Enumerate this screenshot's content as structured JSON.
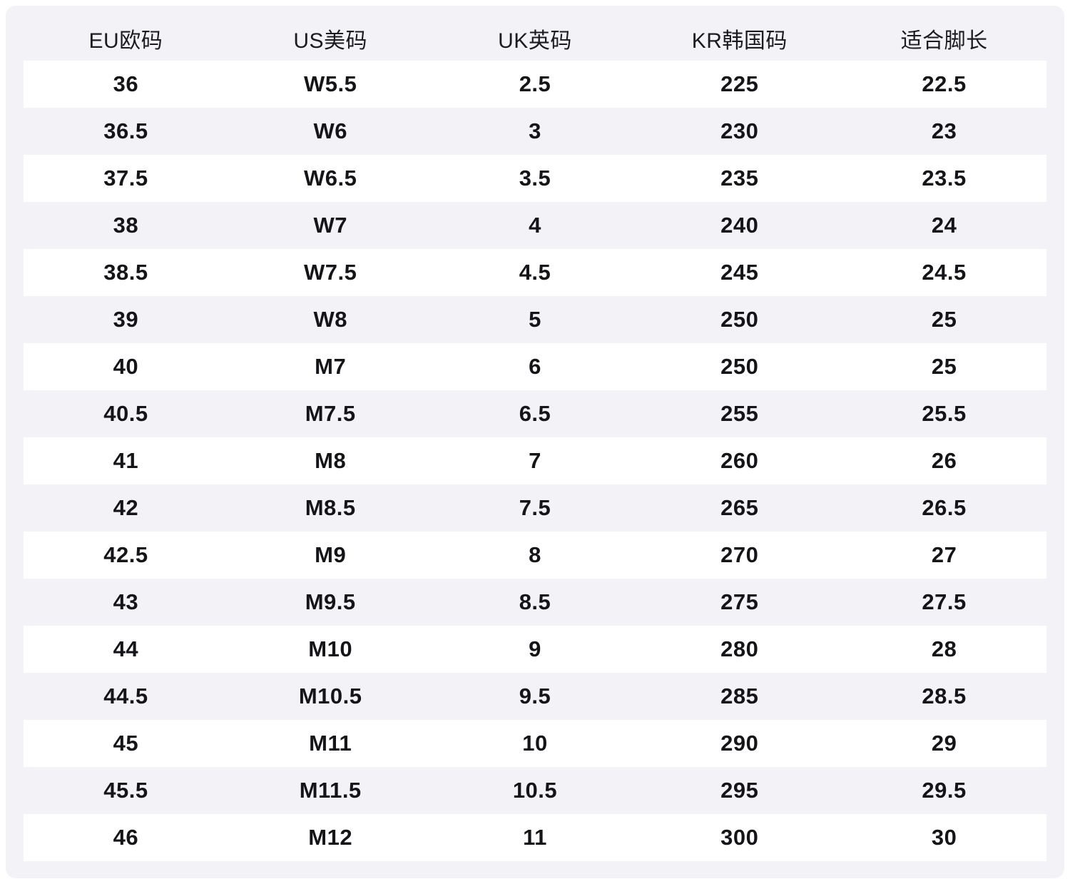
{
  "chart_data": {
    "type": "table",
    "columns": [
      "EU欧码",
      "US美码",
      "UK英码",
      "KR韩国码",
      "适合脚长"
    ],
    "rows": [
      [
        "36",
        "W5.5",
        "2.5",
        "225",
        "22.5"
      ],
      [
        "36.5",
        "W6",
        "3",
        "230",
        "23"
      ],
      [
        "37.5",
        "W6.5",
        "3.5",
        "235",
        "23.5"
      ],
      [
        "38",
        "W7",
        "4",
        "240",
        "24"
      ],
      [
        "38.5",
        "W7.5",
        "4.5",
        "245",
        "24.5"
      ],
      [
        "39",
        "W8",
        "5",
        "250",
        "25"
      ],
      [
        "40",
        "M7",
        "6",
        "250",
        "25"
      ],
      [
        "40.5",
        "M7.5",
        "6.5",
        "255",
        "25.5"
      ],
      [
        "41",
        "M8",
        "7",
        "260",
        "26"
      ],
      [
        "42",
        "M8.5",
        "7.5",
        "265",
        "26.5"
      ],
      [
        "42.5",
        "M9",
        "8",
        "270",
        "27"
      ],
      [
        "43",
        "M9.5",
        "8.5",
        "275",
        "27.5"
      ],
      [
        "44",
        "M10",
        "9",
        "280",
        "28"
      ],
      [
        "44.5",
        "M10.5",
        "9.5",
        "285",
        "28.5"
      ],
      [
        "45",
        "M11",
        "10",
        "290",
        "29"
      ],
      [
        "45.5",
        "M11.5",
        "10.5",
        "295",
        "29.5"
      ],
      [
        "46",
        "M12",
        "11",
        "300",
        "30"
      ]
    ],
    "layout": {
      "stripe_pattern": "odd-rows-white",
      "first_row_striped": true
    }
  },
  "colors": {
    "page_bg": "#ffffff",
    "panel_bg": "#f2f2f7",
    "stripe_bg": "#ffffff",
    "header_text": "#1b1b20",
    "cell_text": "#141419"
  }
}
